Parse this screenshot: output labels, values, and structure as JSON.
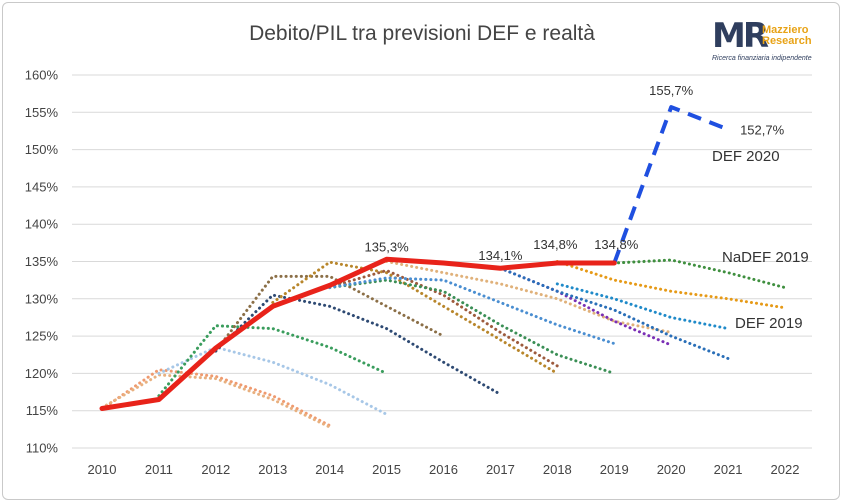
{
  "chart_data": {
    "type": "line",
    "title": "Debito/PIL tra previsioni DEF e realtà",
    "xlabel": "",
    "ylabel": "",
    "ylim": [
      110,
      160
    ],
    "xlim": [
      2010,
      2022
    ],
    "x_ticks": [
      "2010",
      "2011",
      "2012",
      "2013",
      "2014",
      "2015",
      "2016",
      "2017",
      "2018",
      "2019",
      "2020",
      "2021",
      "2022"
    ],
    "y_ticks": [
      "110%",
      "115%",
      "120%",
      "125%",
      "130%",
      "135%",
      "140%",
      "145%",
      "150%",
      "155%",
      "160%"
    ],
    "grid": true,
    "legend": "none",
    "actual": {
      "color": "#e8231a",
      "points": [
        [
          2010,
          115.3
        ],
        [
          2011,
          116.5
        ],
        [
          2012,
          123.4
        ],
        [
          2013,
          129.0
        ],
        [
          2014,
          131.8
        ],
        [
          2015,
          135.3
        ],
        [
          2016,
          134.8
        ],
        [
          2017,
          134.1
        ],
        [
          2018,
          134.8
        ],
        [
          2019,
          134.8
        ]
      ]
    },
    "forecasts": [
      {
        "name": "DEF 2020",
        "color": "#1f4fe0",
        "style": "dash",
        "points": [
          [
            2019,
            134.8
          ],
          [
            2020,
            155.7
          ],
          [
            2021,
            152.7
          ]
        ]
      },
      {
        "color": "#ef9a6f",
        "style": "dot",
        "points": [
          [
            2010,
            115.2
          ],
          [
            2011,
            120.5
          ],
          [
            2012,
            119.6
          ],
          [
            2013,
            117.0
          ],
          [
            2014,
            113.0
          ]
        ]
      },
      {
        "color": "#e8b07f",
        "style": "dot",
        "points": [
          [
            2010,
            115.4
          ],
          [
            2011,
            119.8
          ],
          [
            2012,
            119.3
          ],
          [
            2013,
            116.5
          ],
          [
            2014,
            112.8
          ]
        ]
      },
      {
        "color": "#a7c7e7",
        "style": "dot",
        "points": [
          [
            2011,
            120.0
          ],
          [
            2012,
            123.5
          ],
          [
            2013,
            121.5
          ],
          [
            2014,
            118.5
          ],
          [
            2015,
            114.5
          ]
        ]
      },
      {
        "color": "#3a9d5d",
        "style": "dot",
        "points": [
          [
            2011,
            117.0
          ],
          [
            2012,
            126.4
          ],
          [
            2013,
            126.0
          ],
          [
            2014,
            123.5
          ],
          [
            2015,
            120.0
          ]
        ]
      },
      {
        "color": "#8b6f47",
        "style": "dot",
        "points": [
          [
            2012,
            123.0
          ],
          [
            2013,
            133.0
          ],
          [
            2014,
            133.0
          ],
          [
            2015,
            129.0
          ],
          [
            2016,
            125.0
          ]
        ]
      },
      {
        "color": "#2e4a73",
        "style": "dot",
        "points": [
          [
            2012,
            123.0
          ],
          [
            2013,
            130.5
          ],
          [
            2014,
            129.0
          ],
          [
            2015,
            126.0
          ],
          [
            2016,
            121.5
          ],
          [
            2017,
            117.2
          ]
        ]
      },
      {
        "color": "#b8862b",
        "style": "dot",
        "points": [
          [
            2013,
            129.5
          ],
          [
            2014,
            134.9
          ],
          [
            2015,
            133.5
          ],
          [
            2016,
            129.0
          ],
          [
            2017,
            124.5
          ],
          [
            2018,
            120.0
          ]
        ]
      },
      {
        "color": "#9d5b3d",
        "style": "dot",
        "points": [
          [
            2014,
            131.6
          ],
          [
            2015,
            133.8
          ],
          [
            2016,
            130.5
          ],
          [
            2017,
            125.5
          ],
          [
            2018,
            121.0
          ]
        ]
      },
      {
        "color": "#3b8f56",
        "style": "dot",
        "points": [
          [
            2014,
            131.5
          ],
          [
            2015,
            132.5
          ],
          [
            2016,
            131.0
          ],
          [
            2017,
            126.5
          ],
          [
            2018,
            122.5
          ],
          [
            2019,
            120.0
          ]
        ]
      },
      {
        "color": "#4a8ed1",
        "style": "dot",
        "points": [
          [
            2014,
            131.5
          ],
          [
            2015,
            132.8
          ],
          [
            2016,
            132.5
          ],
          [
            2017,
            129.5
          ],
          [
            2018,
            126.5
          ],
          [
            2019,
            124.0
          ]
        ]
      },
      {
        "color": "#e0b17a",
        "style": "dot",
        "points": [
          [
            2015,
            135.0
          ],
          [
            2016,
            133.5
          ],
          [
            2017,
            132.0
          ],
          [
            2018,
            130.0
          ],
          [
            2019,
            127.0
          ],
          [
            2020,
            125.5
          ]
        ]
      },
      {
        "color": "#7a2fb5",
        "style": "dot",
        "points": [
          [
            2017,
            134.1
          ],
          [
            2018,
            131.0
          ],
          [
            2019,
            127.0
          ],
          [
            2020,
            123.8
          ]
        ]
      },
      {
        "color": "#2a6fb8",
        "style": "dot",
        "points": [
          [
            2017,
            134.1
          ],
          [
            2018,
            131.0
          ],
          [
            2019,
            128.5
          ],
          [
            2020,
            125.0
          ],
          [
            2021,
            122.0
          ]
        ]
      },
      {
        "name": "DEF 2019",
        "color": "#1f8ac9",
        "style": "dot",
        "points": [
          [
            2018,
            132.0
          ],
          [
            2019,
            130.0
          ],
          [
            2020,
            127.5
          ],
          [
            2021,
            126.0
          ]
        ]
      },
      {
        "color": "#e69a17",
        "style": "dot",
        "points": [
          [
            2018,
            135.0
          ],
          [
            2019,
            132.5
          ],
          [
            2020,
            131.0
          ],
          [
            2021,
            130.0
          ],
          [
            2022,
            128.8
          ]
        ]
      },
      {
        "name": "NaDEF 2019",
        "color": "#3f8f3f",
        "style": "dot",
        "points": [
          [
            2018,
            134.8
          ],
          [
            2019,
            134.8
          ],
          [
            2020,
            135.2
          ],
          [
            2021,
            133.5
          ],
          [
            2022,
            131.5
          ]
        ]
      }
    ],
    "data_labels": [
      {
        "text": "135,3%",
        "x": 2015,
        "y": 135.3
      },
      {
        "text": "134,1%",
        "x": 2017,
        "y": 134.1
      },
      {
        "text": "134,8%",
        "x": 2018,
        "y": 134.8
      },
      {
        "text": "134,8%",
        "x": 2019,
        "y": 134.8
      },
      {
        "text": "155,7%",
        "x": 2020,
        "y": 155.7
      },
      {
        "text": "152,7%",
        "x": 2021,
        "y": 152.7
      }
    ],
    "series_labels": [
      "DEF 2020",
      "NaDEF 2019",
      "DEF 2019"
    ]
  },
  "logo": {
    "mark": "MR",
    "name_line1": "Mazziero",
    "name_line2": "Research",
    "tagline": "Ricerca finanziaria indipendente"
  }
}
